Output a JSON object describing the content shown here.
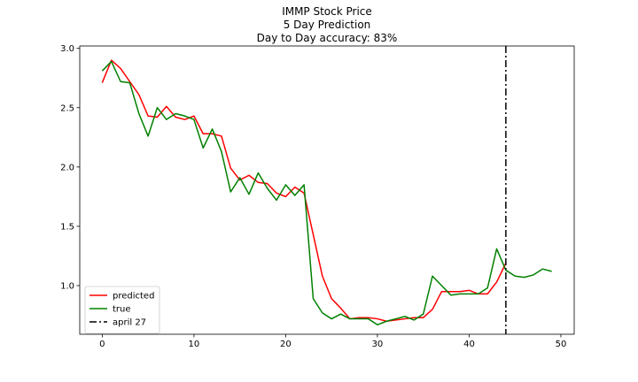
{
  "chart_data": {
    "type": "line",
    "title_lines": [
      "IMMP Stock Price",
      "5 Day Prediction",
      "Day to Day accuracy: 83%"
    ],
    "xlabel": "",
    "ylabel": "",
    "xlim": [
      -2.45,
      51.45
    ],
    "ylim": [
      0.59,
      3.02
    ],
    "xticks": [
      0,
      10,
      20,
      30,
      40,
      50
    ],
    "yticks": [
      1.0,
      1.5,
      2.0,
      2.5,
      3.0
    ],
    "xtick_labels": [
      "0",
      "10",
      "20",
      "30",
      "40",
      "50"
    ],
    "ytick_labels": [
      "1.0",
      "1.5",
      "2.0",
      "2.5",
      "3.0"
    ],
    "grid": false,
    "legend_position": "lower-left",
    "series": [
      {
        "name": "predicted",
        "color": "#ff0000",
        "style": "solid",
        "x": [
          0,
          1,
          2,
          3,
          4,
          5,
          6,
          7,
          8,
          9,
          10,
          11,
          12,
          13,
          14,
          15,
          16,
          17,
          18,
          19,
          20,
          21,
          22,
          23,
          24,
          25,
          26,
          27,
          28,
          29,
          30,
          31,
          32,
          33,
          34,
          35,
          36,
          37,
          38,
          39,
          40,
          41,
          42,
          43,
          44
        ],
        "y": [
          2.71,
          2.9,
          2.83,
          2.72,
          2.61,
          2.43,
          2.42,
          2.51,
          2.42,
          2.4,
          2.43,
          2.28,
          2.28,
          2.26,
          1.99,
          1.89,
          1.93,
          1.87,
          1.86,
          1.78,
          1.75,
          1.83,
          1.78,
          1.43,
          1.08,
          0.89,
          0.81,
          0.72,
          0.73,
          0.73,
          0.72,
          0.7,
          0.71,
          0.72,
          0.73,
          0.73,
          0.8,
          0.95,
          0.95,
          0.95,
          0.96,
          0.93,
          0.93,
          1.03,
          1.19
        ]
      },
      {
        "name": "true",
        "color": "#008000",
        "style": "solid",
        "x": [
          0,
          1,
          2,
          3,
          4,
          5,
          6,
          7,
          8,
          9,
          10,
          11,
          12,
          13,
          14,
          15,
          16,
          17,
          18,
          19,
          20,
          21,
          22,
          23,
          24,
          25,
          26,
          27,
          28,
          29,
          30,
          31,
          32,
          33,
          34,
          35,
          36,
          37,
          38,
          39,
          40,
          41,
          42,
          43,
          44,
          45,
          46,
          47,
          48,
          49
        ],
        "y": [
          2.81,
          2.89,
          2.72,
          2.71,
          2.45,
          2.26,
          2.5,
          2.4,
          2.45,
          2.43,
          2.4,
          2.16,
          2.32,
          2.13,
          1.79,
          1.91,
          1.77,
          1.95,
          1.82,
          1.72,
          1.85,
          1.76,
          1.85,
          0.89,
          0.77,
          0.72,
          0.76,
          0.72,
          0.72,
          0.72,
          0.67,
          0.7,
          0.72,
          0.74,
          0.71,
          0.76,
          1.08,
          1.0,
          0.92,
          0.93,
          0.93,
          0.93,
          0.98,
          1.31,
          1.13,
          1.08,
          1.07,
          1.09,
          1.14,
          1.12
        ]
      }
    ],
    "vlines": [
      {
        "name": "april 27",
        "x": 44,
        "color": "#000000",
        "style": "dashdot"
      }
    ]
  }
}
